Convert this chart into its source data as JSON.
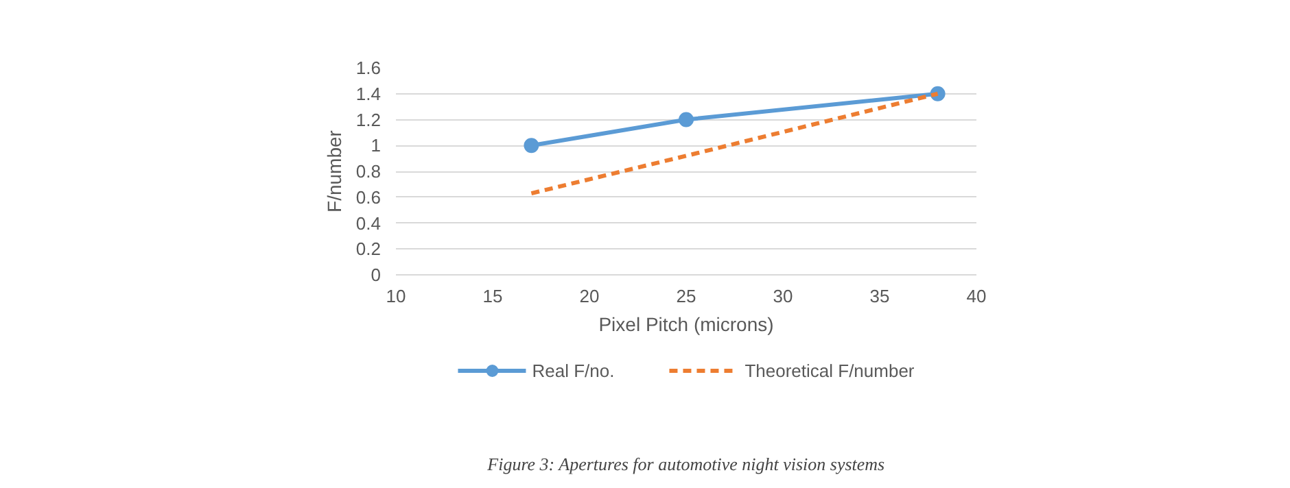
{
  "chart_data": {
    "type": "line",
    "xlabel": "Pixel Pitch (microns)",
    "ylabel": "F/number",
    "xlim": [
      10,
      40
    ],
    "xticks": [
      10,
      15,
      20,
      25,
      30,
      35,
      40
    ],
    "ylim": [
      0,
      1.6
    ],
    "yticks": [
      {
        "value": 0,
        "label": "0"
      },
      {
        "value": 0.2,
        "label": "0.2"
      },
      {
        "value": 0.4,
        "label": "0.4"
      },
      {
        "value": 0.6,
        "label": "0.6"
      },
      {
        "value": 0.8,
        "label": "0.8"
      },
      {
        "value": 1,
        "label": "1"
      },
      {
        "value": 1.2,
        "label": "1.2"
      },
      {
        "value": 1.4,
        "label": "1.4"
      },
      {
        "value": 1.6,
        "label": "1.6"
      }
    ],
    "grid": "y",
    "legend": "bottom",
    "series": [
      {
        "name": "Real F/no.",
        "color": "#5b9bd5",
        "x": [
          17,
          25,
          38
        ],
        "values": [
          1.0,
          1.2,
          1.4
        ],
        "marker": "circle",
        "line_style": "solid"
      },
      {
        "name": "Theoretical F/number",
        "color": "#ed7d31",
        "x": [
          17,
          25,
          38
        ],
        "values": [
          0.63,
          0.92,
          1.4
        ],
        "marker": "none",
        "line_style": "dashed"
      }
    ],
    "annotations": [
      "Figure 3: Apertures for automotive night vision systems"
    ]
  }
}
